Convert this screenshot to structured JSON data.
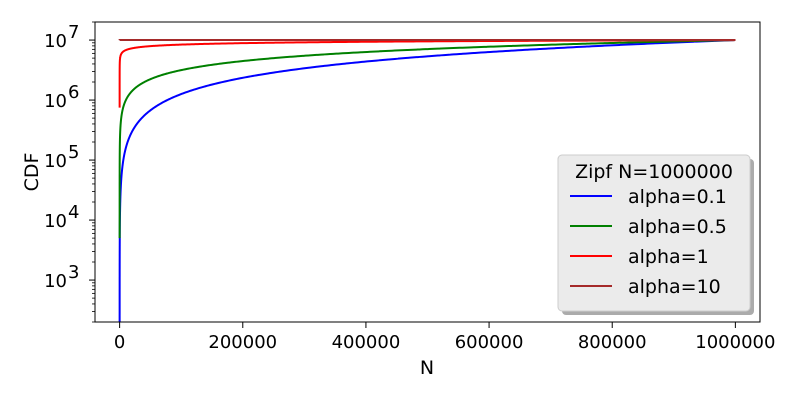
{
  "chart_data": {
    "type": "line",
    "title": "",
    "xlabel": "N",
    "ylabel": "CDF",
    "x_scale": "linear",
    "y_scale": "log",
    "xlim": [
      -40000,
      1040000
    ],
    "ylim": [
      200,
      20000000
    ],
    "x_ticks": [
      0,
      200000,
      400000,
      600000,
      800000,
      1000000
    ],
    "x_tick_labels": [
      "0",
      "200000",
      "400000",
      "600000",
      "800000",
      "1000000"
    ],
    "y_ticks": [
      1000,
      10000,
      100000,
      1000000,
      10000000
    ],
    "y_tick_labels": [
      {
        "base": "10",
        "exp": "3"
      },
      {
        "base": "10",
        "exp": "4"
      },
      {
        "base": "10",
        "exp": "5"
      },
      {
        "base": "10",
        "exp": "6"
      },
      {
        "base": "10",
        "exp": "7"
      }
    ],
    "grid": false,
    "legend": {
      "title": "Zipf N=1000000",
      "placement": "lower-right"
    },
    "series": [
      {
        "name": "alpha=0.1",
        "color": "#0000ff",
        "alpha": 0.1
      },
      {
        "name": "alpha=0.5",
        "color": "#008000",
        "alpha": 0.5
      },
      {
        "name": "alpha=1",
        "color": "#ff0000",
        "alpha": 1
      },
      {
        "name": "alpha=10",
        "color": "#a52a2a",
        "alpha": 10
      }
    ],
    "x": [
      1,
      2,
      5,
      10,
      20,
      50,
      100,
      200,
      500,
      1000,
      2000,
      5000,
      10000,
      20000,
      50000,
      100000,
      150000,
      200000,
      300000,
      400000,
      500000,
      600000,
      700000,
      800000,
      900000,
      1000000
    ]
  }
}
